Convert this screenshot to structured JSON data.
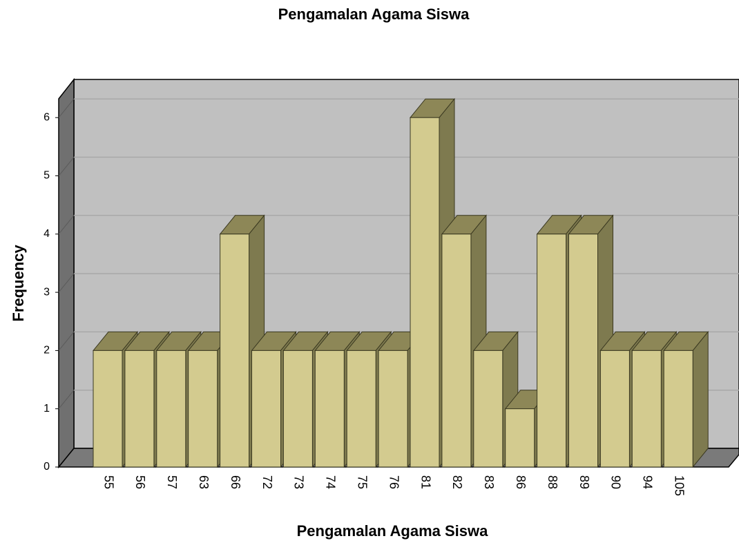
{
  "chart_data": {
    "type": "bar",
    "title": "Pengamalan Agama Siswa",
    "x_label": "Pengamalan Agama Siswa",
    "y_label": "Frequency",
    "categories": [
      "55",
      "56",
      "57",
      "63",
      "66",
      "72",
      "73",
      "74",
      "75",
      "76",
      "81",
      "82",
      "83",
      "86",
      "88",
      "89",
      "90",
      "94",
      "105"
    ],
    "values": [
      2,
      2,
      2,
      2,
      4,
      2,
      2,
      2,
      2,
      2,
      6,
      4,
      2,
      1,
      4,
      4,
      2,
      2,
      2
    ],
    "color": "#d3cb8f",
    "ylim": [
      0,
      6.33
    ],
    "yticks": [
      0,
      1,
      2,
      3,
      4,
      5,
      6
    ],
    "grid": true
  }
}
